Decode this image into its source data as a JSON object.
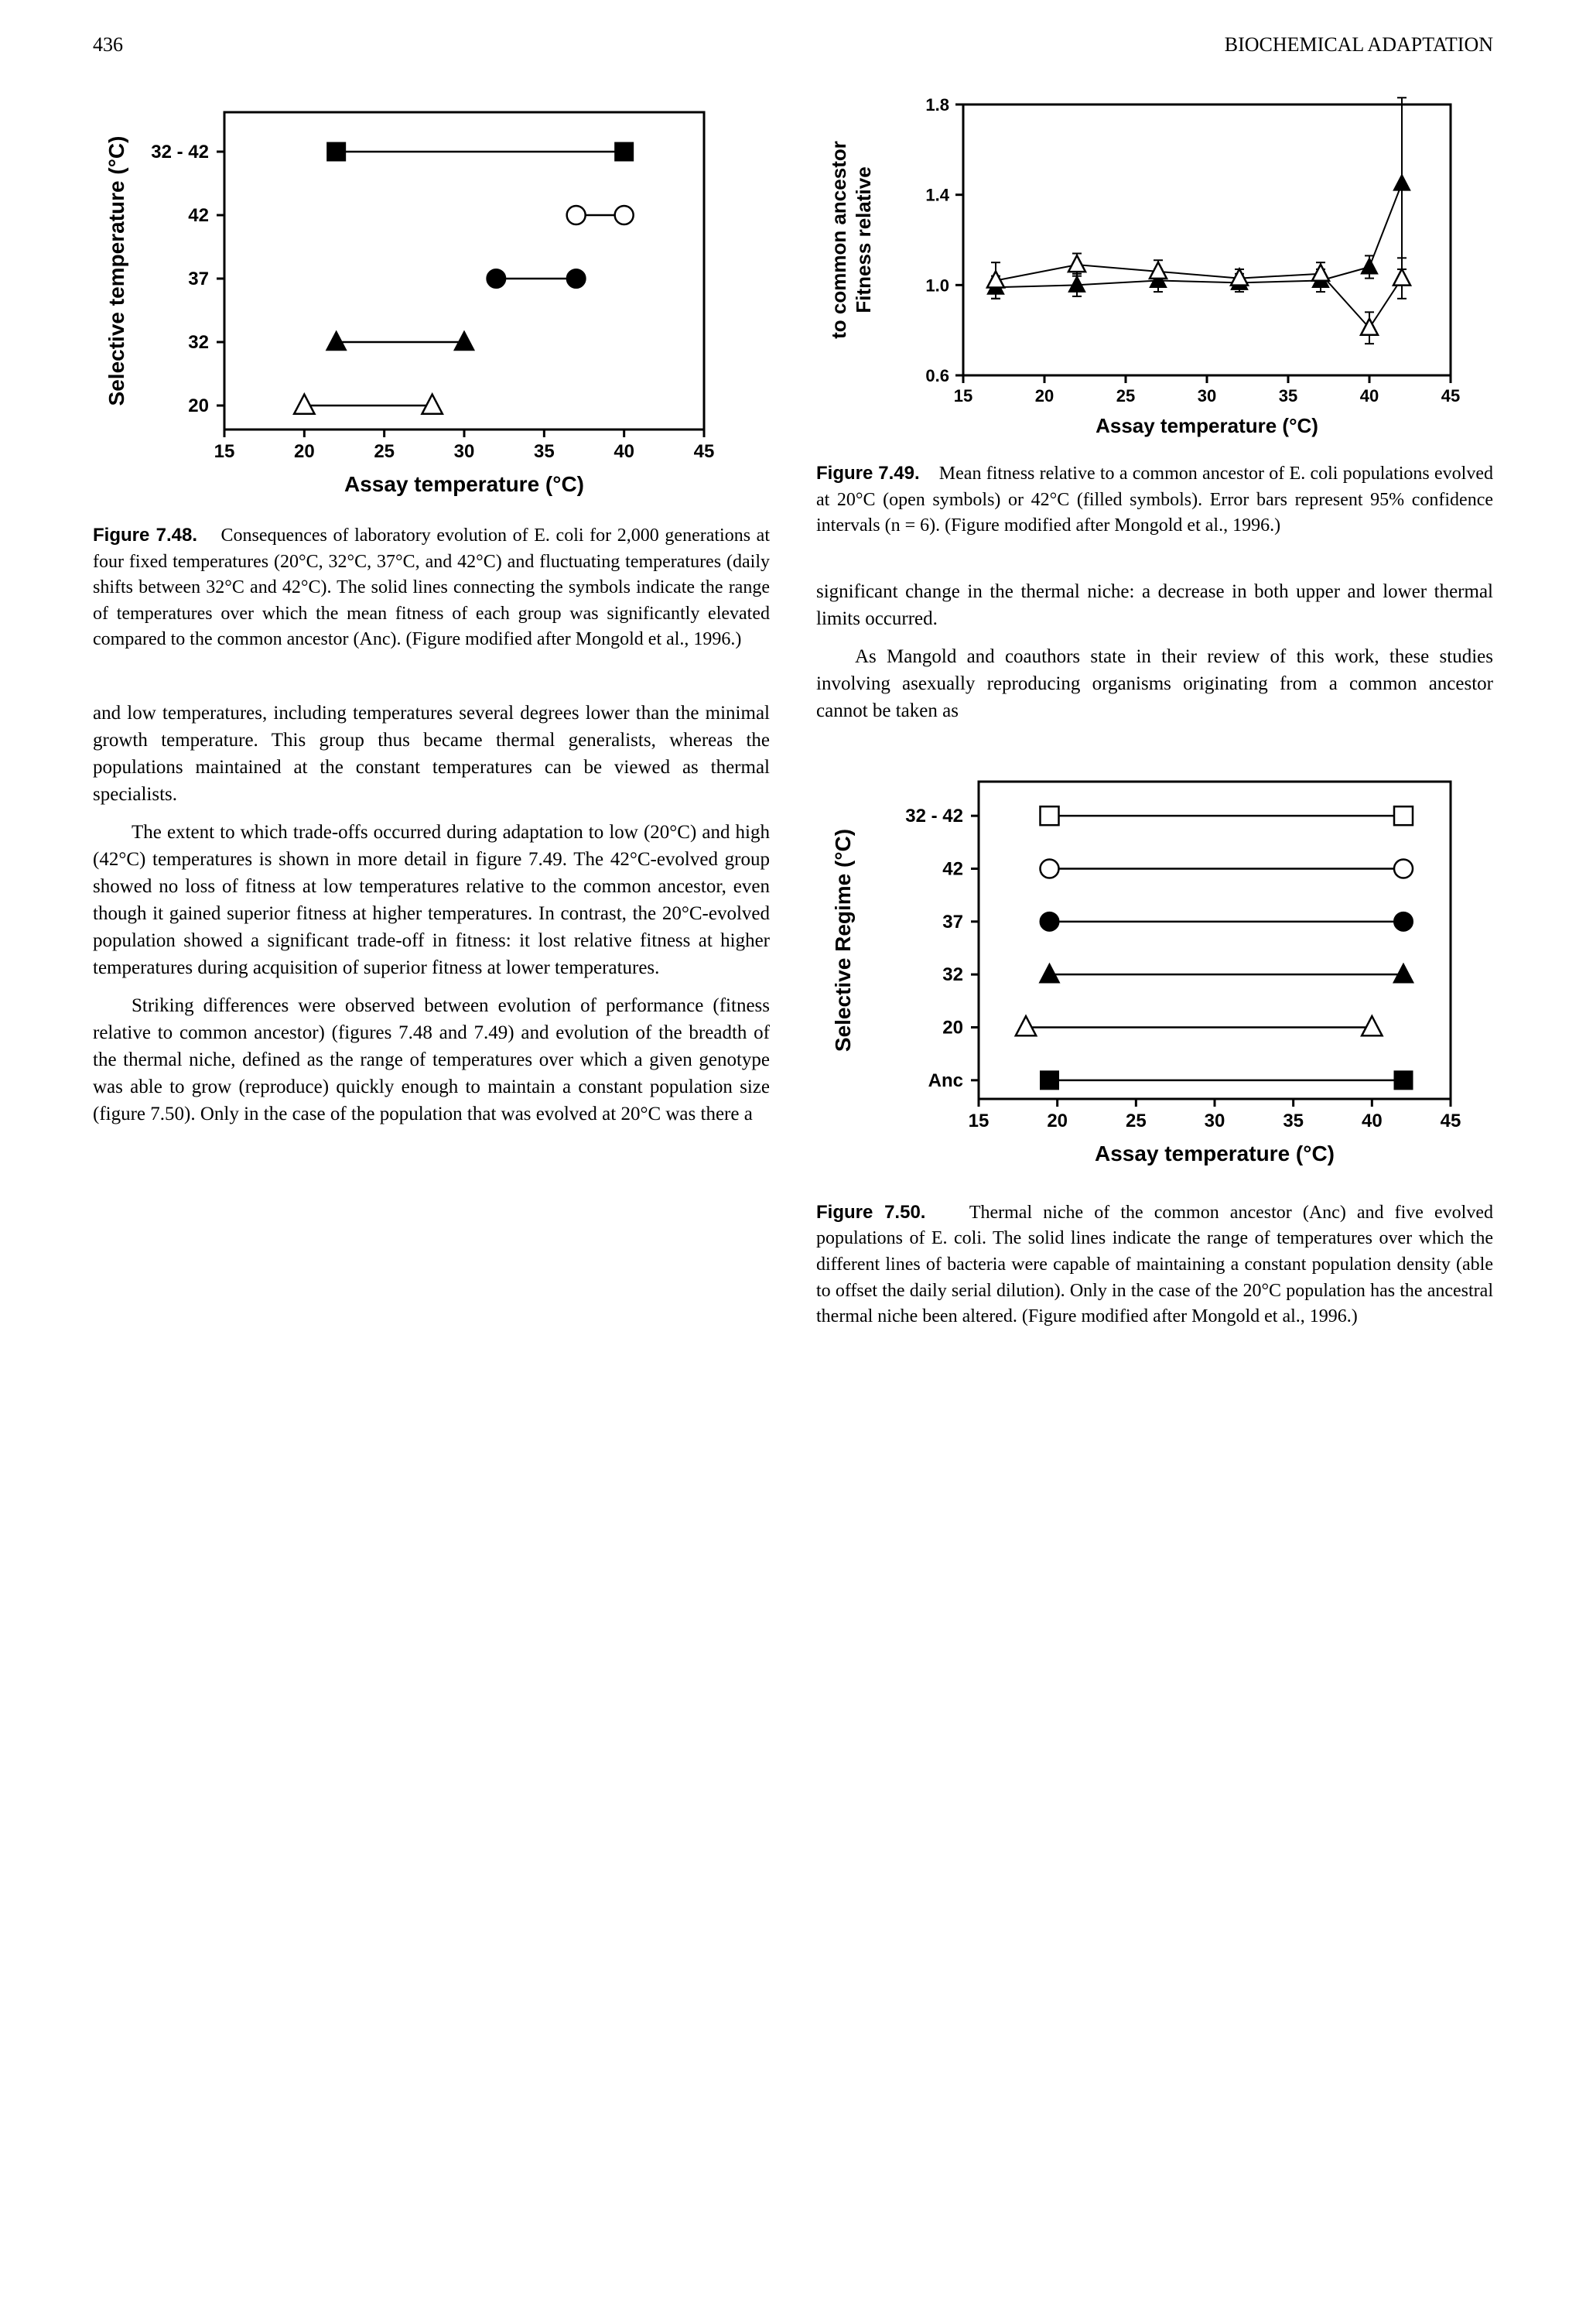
{
  "header": {
    "page_number": "436",
    "running_head": "BIOCHEMICAL ADAPTATION"
  },
  "fig748": {
    "title": "Figure 7.48.",
    "caption": "Consequences of laboratory evolution of E. coli for 2,000 generations at four fixed temperatures (20°C, 32°C, 37°C, and 42°C) and fluctuating temperatures (daily shifts between 32°C and 42°C). The solid lines connecting the symbols indicate the range of temperatures over which the mean fitness of each group was significantly elevated compared to the common ancestor (Anc). (Figure modified after Mongold et al., 1996.)",
    "xlabel": "Assay temperature (°C)",
    "ylabel": "Selective temperature (°C)",
    "xlim": [
      15,
      45
    ],
    "xticks": [
      15,
      20,
      25,
      30,
      35,
      40,
      45
    ],
    "ycategories": [
      "20",
      "32",
      "37",
      "42",
      "32 - 42"
    ],
    "series": [
      {
        "label": "20",
        "marker": "triangle-open",
        "x": [
          20,
          28
        ],
        "line": true
      },
      {
        "label": "32",
        "marker": "triangle-filled",
        "x": [
          22,
          30
        ],
        "line": true
      },
      {
        "label": "37",
        "marker": "circle-filled",
        "x": [
          32,
          37
        ],
        "line": true
      },
      {
        "label": "42",
        "marker": "circle-open",
        "x": [
          37,
          40
        ],
        "line": true
      },
      {
        "label": "32 - 42",
        "marker": "square-filled",
        "x": [
          22,
          40
        ],
        "line": true
      }
    ],
    "axis_fontsize": 18,
    "label_fontsize": 22,
    "marker_size": 12,
    "line_width": 2.5,
    "axis_line_width": 3,
    "colors": {
      "axis": "#000000",
      "marker": "#000000",
      "background": "#ffffff"
    }
  },
  "fig749": {
    "title": "Figure 7.49.",
    "caption": "Mean fitness relative to a common ancestor of E. coli populations evolved at 20°C (open symbols) or 42°C (filled symbols). Error bars represent 95% confidence intervals (n = 6). (Figure modified after Mongold et al., 1996.)",
    "xlabel": "Assay temperature (°C)",
    "ylabel_line1": "Fitness relative",
    "ylabel_line2": "to common ancestor",
    "xlim": [
      15,
      45
    ],
    "xticks": [
      15,
      20,
      25,
      30,
      35,
      40,
      45
    ],
    "ylim": [
      0.6,
      1.8
    ],
    "yticks": [
      0.6,
      1.0,
      1.4,
      1.8
    ],
    "marker_size": 10,
    "line_width": 2,
    "axis_line_width": 3,
    "colors": {
      "axis": "#000000",
      "marker": "#000000",
      "background": "#ffffff"
    },
    "series_open": {
      "x": [
        17,
        22,
        27,
        32,
        37,
        40,
        42
      ],
      "y": [
        1.02,
        1.09,
        1.06,
        1.03,
        1.05,
        0.81,
        1.03
      ],
      "err": [
        0.08,
        0.05,
        0.05,
        0.04,
        0.05,
        0.07,
        0.09
      ]
    },
    "series_filled": {
      "x": [
        17,
        22,
        27,
        32,
        37,
        40,
        42
      ],
      "y": [
        0.99,
        1.0,
        1.02,
        1.01,
        1.02,
        1.08,
        1.45
      ],
      "err": [
        0.05,
        0.05,
        0.05,
        0.04,
        0.05,
        0.05,
        0.38
      ]
    }
  },
  "fig750": {
    "title": "Figure 7.50.",
    "caption": "Thermal niche of the common ancestor (Anc) and five evolved populations of E. coli. The solid lines indicate the range of temperatures over which the different lines of bacteria were capable of maintaining a constant population density (able to offset the daily serial dilution). Only in the case of the 20°C population has the ancestral thermal niche been altered. (Figure modified after Mongold et al., 1996.)",
    "xlabel": "Assay temperature (°C)",
    "ylabel": "Selective Regime (°C)",
    "xlim": [
      15,
      45
    ],
    "xticks": [
      15,
      20,
      25,
      30,
      35,
      40,
      45
    ],
    "ycategories": [
      "Anc",
      "20",
      "32",
      "37",
      "42",
      "32 - 42"
    ],
    "series": [
      {
        "label": "Anc",
        "marker": "square-filled",
        "x": [
          19.5,
          42
        ],
        "line": true
      },
      {
        "label": "20",
        "marker": "triangle-open",
        "x": [
          18,
          40
        ],
        "line": true
      },
      {
        "label": "32",
        "marker": "triangle-filled",
        "x": [
          19.5,
          42
        ],
        "line": true
      },
      {
        "label": "37",
        "marker": "circle-filled",
        "x": [
          19.5,
          42
        ],
        "line": true
      },
      {
        "label": "42",
        "marker": "circle-open",
        "x": [
          19.5,
          42
        ],
        "line": true
      },
      {
        "label": "32 - 42",
        "marker": "square-open",
        "x": [
          19.5,
          42
        ],
        "line": true
      }
    ],
    "axis_fontsize": 18,
    "label_fontsize": 22,
    "marker_size": 12,
    "line_width": 2.5,
    "axis_line_width": 3,
    "colors": {
      "axis": "#000000",
      "marker": "#000000",
      "background": "#ffffff"
    }
  },
  "paragraphs": {
    "p1": "and low temperatures, including temperatures several degrees lower than the minimal growth temperature. This group thus became thermal generalists, whereas the populations maintained at the constant temperatures can be viewed as thermal specialists.",
    "p2": "The extent to which trade-offs occurred during adaptation to low (20°C) and high (42°C) temperatures is shown in more detail in figure 7.49. The 42°C-evolved group showed no loss of fitness at low temperatures relative to the common ancestor, even though it gained superior fitness at higher temperatures. In contrast, the 20°C-evolved population showed a significant trade-off in fitness: it lost relative fitness at higher temperatures during acquisition of superior fitness at lower temperatures.",
    "p3": "Striking differences were observed between evolution of performance (fitness relative to common ancestor) (figures 7.48 and 7.49) and evolution of the breadth of the thermal niche, defined as the range of temperatures over which a given genotype was able to grow (reproduce) quickly enough to maintain a constant population size (figure 7.50). Only in the case of the population that was evolved at 20°C was there a",
    "p4": "significant change in the thermal niche: a decrease in both upper and lower thermal limits occurred.",
    "p5": "As Mangold and coauthors state in their review of this work, these studies involving asexually reproducing organisms originating from a common ancestor cannot be taken as"
  }
}
